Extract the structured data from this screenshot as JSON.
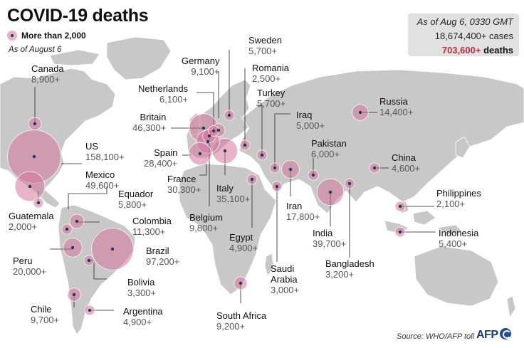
{
  "title": "COVID-19 deaths",
  "legend": {
    "label": "More than 2,000"
  },
  "as_of_short": "As of August 6",
  "infobox": {
    "date": "As of Aug 6, 0330 GMT",
    "cases": "18,674,400+ cases",
    "deaths_value": "703,600+",
    "deaths_label": "deaths"
  },
  "colors": {
    "bubble": "#d6769a",
    "dot": "#1f3a5f",
    "land": "#c8c8c8",
    "ocean": "#ffffff",
    "deaths_accent": "#b8323b"
  },
  "countries": [
    {
      "id": "canada",
      "name": "Canada",
      "deaths": "8,900+"
    },
    {
      "id": "us",
      "name": "US",
      "deaths": "158,100+"
    },
    {
      "id": "mexico",
      "name": "Mexico",
      "deaths": "49,600+"
    },
    {
      "id": "guatemala",
      "name": "Guatemala",
      "deaths": "2,000+"
    },
    {
      "id": "ecuador",
      "name": "Equador",
      "deaths": "5,800+"
    },
    {
      "id": "colombia",
      "name": "Colombia",
      "deaths": "11,300+"
    },
    {
      "id": "peru",
      "name": "Peru",
      "deaths": "20,000+"
    },
    {
      "id": "brazil",
      "name": "Brazil",
      "deaths": "97,200+"
    },
    {
      "id": "bolivia",
      "name": "Bolivia",
      "deaths": "3,300+"
    },
    {
      "id": "chile",
      "name": "Chile",
      "deaths": "9,700+"
    },
    {
      "id": "argentina",
      "name": "Argentina",
      "deaths": "4,900+"
    },
    {
      "id": "britain",
      "name": "Britain",
      "deaths": "46,300+"
    },
    {
      "id": "netherlands",
      "name": "Netherlands",
      "deaths": "6,100+"
    },
    {
      "id": "germany",
      "name": "Germany",
      "deaths": "9,100+"
    },
    {
      "id": "sweden",
      "name": "Sweden",
      "deaths": "5,700+"
    },
    {
      "id": "romania",
      "name": "Romania",
      "deaths": "2,500+"
    },
    {
      "id": "turkey",
      "name": "Turkey",
      "deaths": "5,700+"
    },
    {
      "id": "spain",
      "name": "Spain",
      "deaths": "28,400+"
    },
    {
      "id": "france",
      "name": "France",
      "deaths": "30,300+"
    },
    {
      "id": "italy",
      "name": "Italy",
      "deaths": "35,100+"
    },
    {
      "id": "belgium",
      "name": "Belgium",
      "deaths": "9,800+"
    },
    {
      "id": "egypt",
      "name": "Egypt",
      "deaths": "4,900+"
    },
    {
      "id": "south_africa",
      "name": "South Africa",
      "deaths": "9,200+"
    },
    {
      "id": "saudi_arabia",
      "name": "Saudi Arabia",
      "deaths": "3,000+"
    },
    {
      "id": "iraq",
      "name": "Iraq",
      "deaths": "5,000+"
    },
    {
      "id": "iran",
      "name": "Iran",
      "deaths": "17,800+"
    },
    {
      "id": "pakistan",
      "name": "Pakistan",
      "deaths": "6,000+"
    },
    {
      "id": "india",
      "name": "India",
      "deaths": "39,700+"
    },
    {
      "id": "bangladesh",
      "name": "Bangladesh",
      "deaths": "3,200+"
    },
    {
      "id": "russia",
      "name": "Russia",
      "deaths": "14,400+"
    },
    {
      "id": "china",
      "name": "China",
      "deaths": "4,600+"
    },
    {
      "id": "philippines",
      "name": "Philippines",
      "deaths": "2,100+"
    },
    {
      "id": "indonesia",
      "name": "Indonesia",
      "deaths": "5,400+"
    }
  ],
  "source": "Source: WHO/AFP toll",
  "logo_text": "AFP"
}
